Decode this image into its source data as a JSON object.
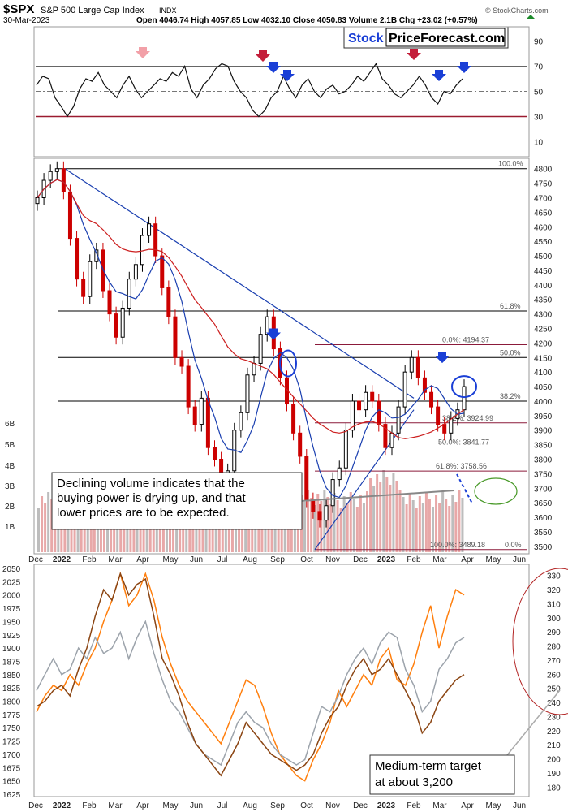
{
  "header": {
    "symbol": "$SPX",
    "name": "S&P 500 Large Cap Index",
    "exchange": "INDX",
    "date": "30-Mar-2023",
    "ohlc": "Open 4046.74  High 4057.85  Low 4032.10  Close 4050.83  Volume 2.1B  Chg +23.02 (+0.57%)",
    "watermark": "© StockCharts.com"
  },
  "logo": {
    "part1": "Stock",
    "part2": "PriceForecast.com"
  },
  "chart_data": [
    {
      "type": "line",
      "panel": "RSI",
      "yticks": [
        10,
        30,
        50,
        70,
        90
      ],
      "ylim": [
        0,
        100
      ],
      "levels": [
        30,
        50,
        70
      ],
      "values": [
        55,
        62,
        60,
        45,
        38,
        30,
        38,
        52,
        60,
        58,
        65,
        55,
        50,
        45,
        55,
        62,
        52,
        45,
        50,
        55,
        60,
        58,
        65,
        62,
        70,
        52,
        45,
        55,
        60,
        68,
        72,
        70,
        58,
        50,
        45,
        35,
        30,
        35,
        45,
        50,
        62,
        52,
        45,
        55,
        60,
        50,
        45,
        52,
        55,
        48,
        50,
        55,
        62,
        58,
        65,
        72,
        60,
        55,
        48,
        45,
        50,
        55,
        62,
        55,
        45,
        40,
        50,
        48,
        55,
        60
      ]
    },
    {
      "type": "candlestick",
      "panel": "Price",
      "ylim": [
        3480,
        4830
      ],
      "yticks": [
        3500,
        3550,
        3600,
        3650,
        3700,
        3750,
        3800,
        3850,
        3900,
        3950,
        4000,
        4050,
        4100,
        4150,
        4200,
        4250,
        4300,
        4350,
        4400,
        4450,
        4500,
        4550,
        4600,
        4650,
        4700,
        4750,
        4800
      ],
      "xticks": [
        "Dec",
        "2022",
        "Feb",
        "Mar",
        "Apr",
        "May",
        "Jun",
        "Jul",
        "Aug",
        "Sep",
        "Oct",
        "Nov",
        "Dec",
        "2023",
        "Feb",
        "Mar",
        "Apr",
        "May",
        "Jun"
      ],
      "closes": [
        4700,
        4760,
        4790,
        4800,
        4720,
        4560,
        4420,
        4360,
        4480,
        4520,
        4380,
        4300,
        4220,
        4320,
        4420,
        4470,
        4570,
        4610,
        4500,
        4390,
        4290,
        4150,
        4120,
        3980,
        3920,
        4010,
        3840,
        3800,
        3680,
        3760,
        3900,
        3960,
        4090,
        4130,
        4230,
        4290,
        4180,
        4080,
        3990,
        3890,
        3810,
        3660,
        3620,
        3590,
        3640,
        3730,
        3770,
        3900,
        4000,
        3970,
        4030,
        4000,
        3920,
        3840,
        3890,
        3980,
        4100,
        4150,
        4080,
        4030,
        3980,
        3920,
        3890,
        3940,
        3970,
        4050
      ],
      "fib_labels": [
        "100.0%",
        "61.8%",
        "50.0%",
        "38.2%",
        "0.0%: 4194.37",
        "38.2%: 3924.99",
        "50.0%: 3841.77",
        "61.8%: 3758.56",
        "100.0%: 3489.18",
        "0.0%"
      ],
      "volume_ticks": [
        "1B",
        "2B",
        "3B",
        "4B",
        "5B",
        "6B"
      ]
    },
    {
      "type": "line",
      "panel": "Comparison",
      "xticks": [
        "Dec",
        "2022",
        "Feb",
        "Mar",
        "Apr",
        "May",
        "Jun",
        "Jul",
        "Aug",
        "Sep",
        "Oct",
        "Nov",
        "Dec",
        "2023",
        "Feb",
        "Mar",
        "Apr",
        "May",
        "Jun"
      ],
      "yticks_left": [
        1625,
        1650,
        1675,
        1700,
        1725,
        1750,
        1775,
        1800,
        1825,
        1850,
        1875,
        1900,
        1925,
        1950,
        1975,
        2000,
        2025,
        2050
      ],
      "ylim_left": [
        1625,
        2050
      ],
      "yticks_right": [
        180,
        190,
        200,
        210,
        220,
        230,
        240,
        250,
        260,
        270,
        280,
        290,
        300,
        310,
        320,
        330
      ],
      "ylim_right": [
        175,
        335
      ],
      "series": [
        {
          "color": "#ff7f0e",
          "values": [
            1780,
            1810,
            1830,
            1820,
            1850,
            1830,
            1870,
            1900,
            1950,
            1990,
            2040,
            1980,
            2000,
            2040,
            1990,
            1920,
            1870,
            1830,
            1800,
            1780,
            1760,
            1740,
            1720,
            1760,
            1800,
            1840,
            1830,
            1790,
            1740,
            1700,
            1680,
            1660,
            1650,
            1690,
            1720,
            1760,
            1820,
            1790,
            1820,
            1850,
            1830,
            1880,
            1900,
            1840,
            1830,
            1870,
            1930,
            1980,
            1900,
            1960,
            2010,
            2000
          ]
        },
        {
          "color": "#9ca3ab",
          "values": [
            1820,
            1850,
            1880,
            1850,
            1860,
            1900,
            1880,
            1920,
            1890,
            1900,
            1930,
            1880,
            1920,
            1950,
            1890,
            1840,
            1800,
            1780,
            1750,
            1720,
            1700,
            1690,
            1680,
            1720,
            1760,
            1780,
            1760,
            1750,
            1720,
            1700,
            1690,
            1680,
            1690,
            1740,
            1790,
            1780,
            1810,
            1850,
            1880,
            1900,
            1870,
            1910,
            1930,
            1920,
            1860,
            1830,
            1780,
            1800,
            1860,
            1880,
            1910,
            1920
          ]
        },
        {
          "color": "#8b4513",
          "values": [
            1790,
            1800,
            1820,
            1830,
            1810,
            1860,
            1900,
            1960,
            2010,
            1990,
            2040,
            2000,
            2020,
            2030,
            1960,
            1880,
            1850,
            1810,
            1760,
            1720,
            1700,
            1680,
            1660,
            1690,
            1720,
            1760,
            1740,
            1720,
            1700,
            1690,
            1680,
            1670,
            1680,
            1700,
            1740,
            1770,
            1790,
            1830,
            1860,
            1880,
            1850,
            1860,
            1880,
            1850,
            1820,
            1790,
            1740,
            1760,
            1800,
            1820,
            1840,
            1850
          ]
        }
      ]
    }
  ],
  "annotations": {
    "volume_note": "Declining volume indicates that the buying power is drying up, and that lower prices are to be expected.",
    "target_note": "Medium-term target at about 3,200"
  },
  "colors": {
    "up": "#000000",
    "down": "#cc0000",
    "ma_fast": "#1a3fb0",
    "ma_slow": "#cc1f1f",
    "arrow_blue": "#1a3fd6",
    "arrow_red": "#c41e3a",
    "arrow_pink": "#f2a0a8",
    "logo_blue": "#1a3fd6"
  }
}
